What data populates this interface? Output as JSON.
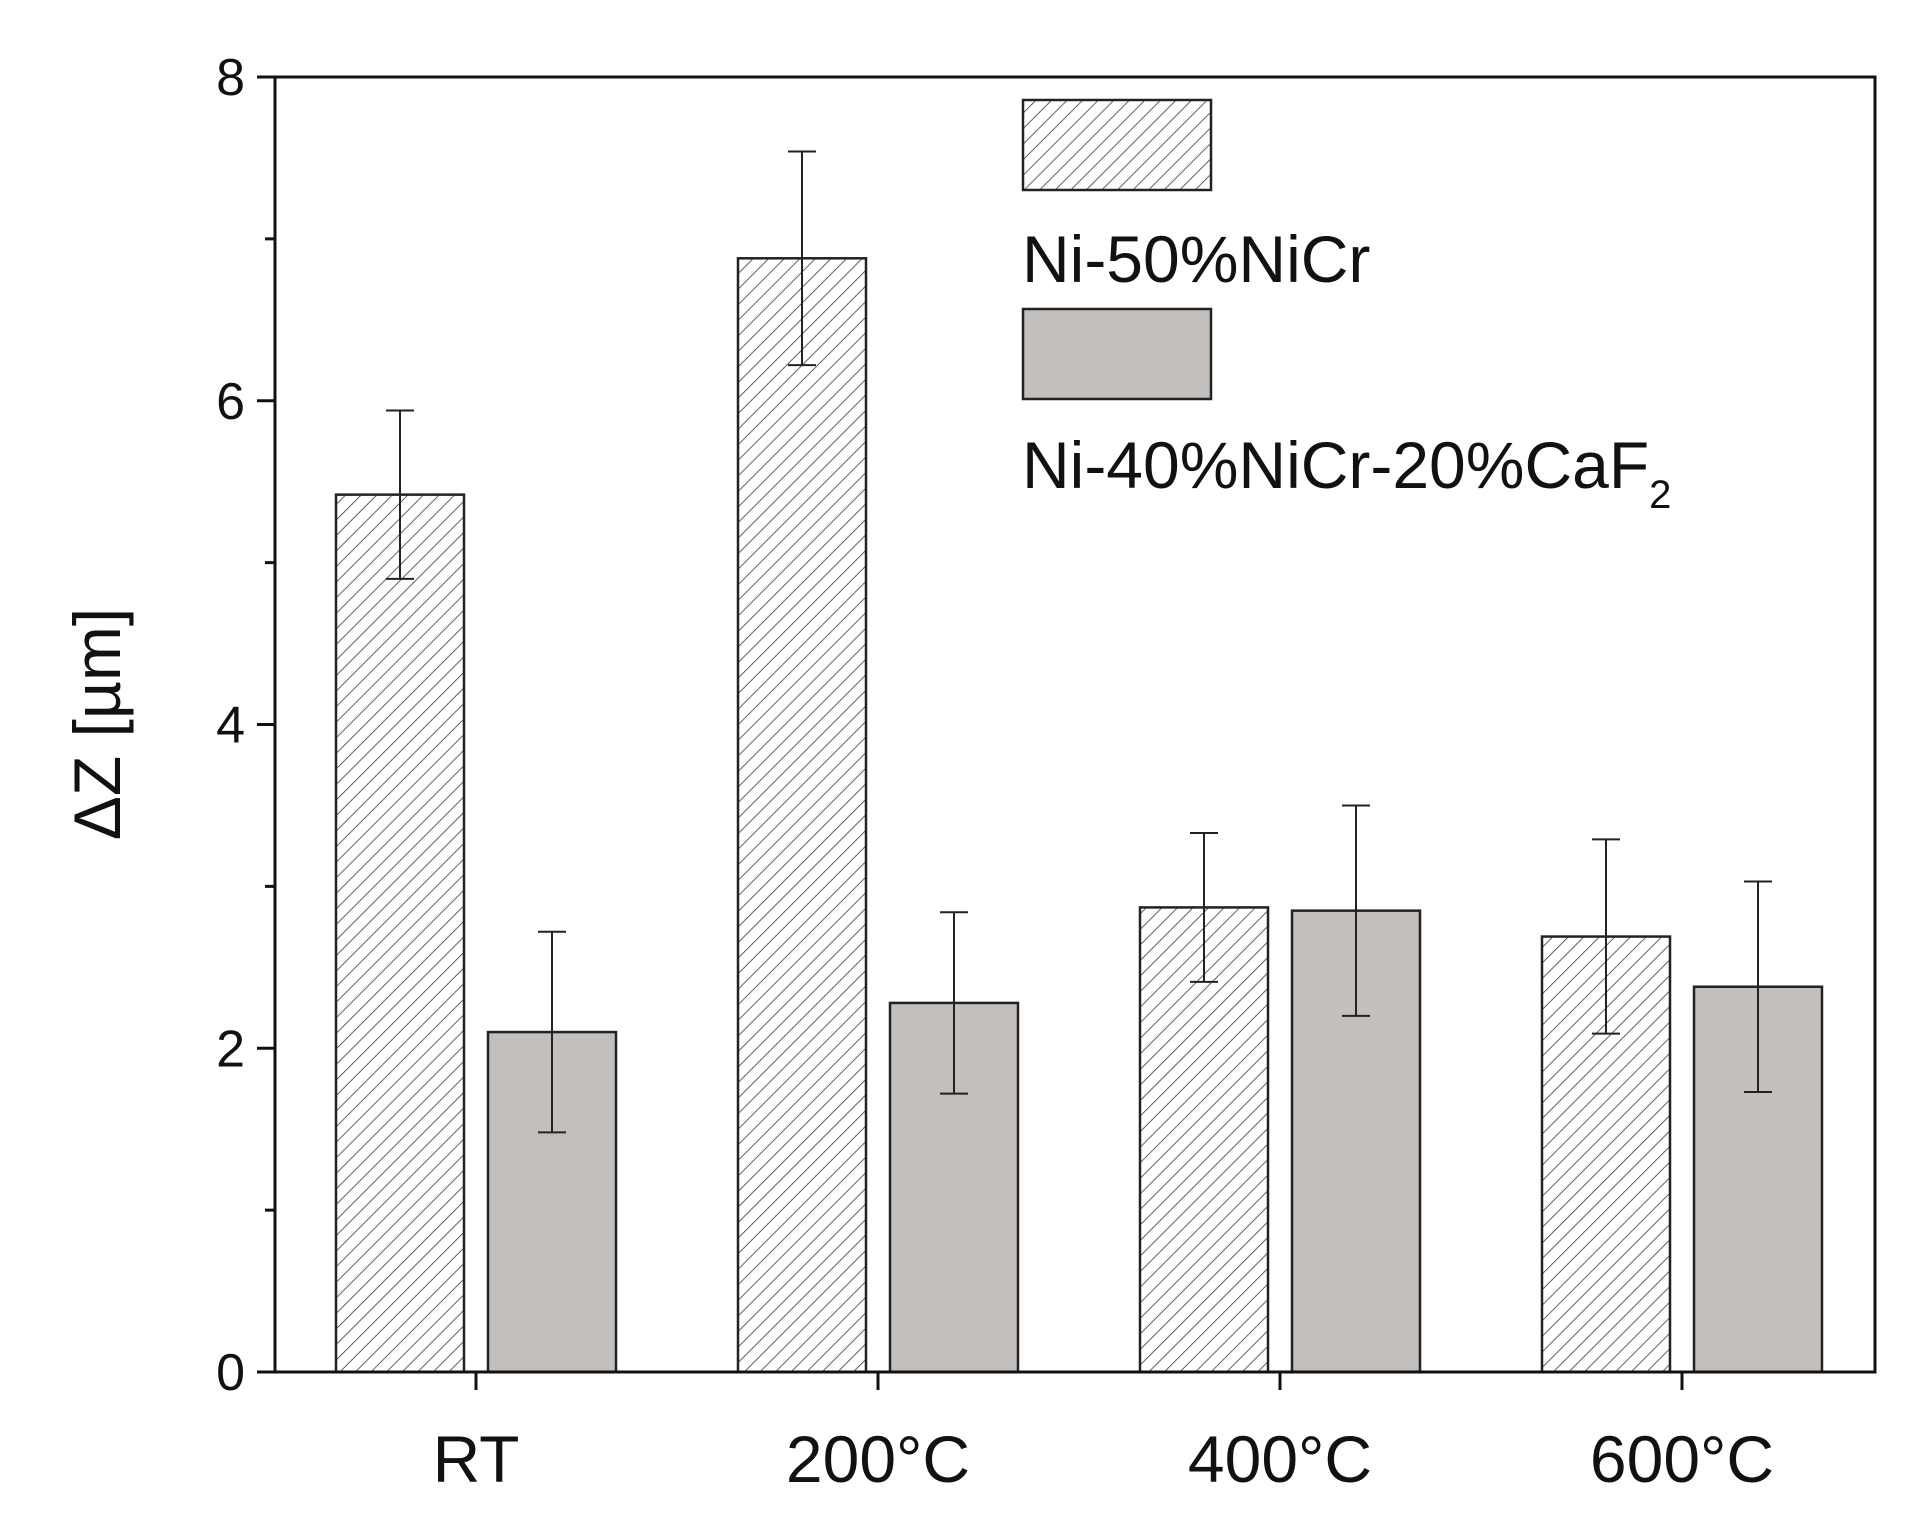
{
  "chart_data": {
    "type": "bar",
    "categories": [
      "RT",
      "200°C",
      "400°C",
      "600°C"
    ],
    "series": [
      {
        "name": "Ni-50%NiCr",
        "values": [
          5.42,
          6.88,
          2.87,
          2.69
        ],
        "errors": [
          0.52,
          0.66,
          0.46,
          0.6
        ],
        "pattern": "hatched",
        "color": "#ffffff"
      },
      {
        "name": "Ni-40%NiCr-20%CaF",
        "name_subscript": "2",
        "values": [
          2.1,
          2.28,
          2.85,
          2.38
        ],
        "errors": [
          0.62,
          0.56,
          0.65,
          0.65
        ],
        "pattern": "solid",
        "color": "#c3bfbc"
      }
    ],
    "ylabel": "ΔZ [µm]",
    "xlabel": "",
    "ylim": [
      0,
      8
    ],
    "yticks": [
      0,
      2,
      4,
      6,
      8
    ],
    "yticks_labeled": [
      "0",
      "2",
      "4",
      "6",
      "8"
    ],
    "legend_placement": "top-right",
    "grid": false
  }
}
